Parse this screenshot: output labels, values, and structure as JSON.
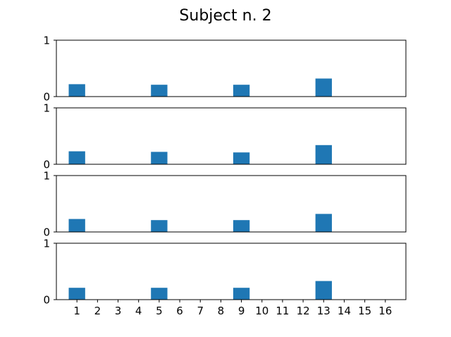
{
  "chart_data": {
    "type": "bar",
    "title": "Subject n. 2",
    "x_tick_labels": [
      "1",
      "2",
      "3",
      "4",
      "5",
      "6",
      "7",
      "8",
      "9",
      "10",
      "11",
      "12",
      "13",
      "14",
      "15",
      "16"
    ],
    "x": [
      1,
      2,
      3,
      4,
      5,
      6,
      7,
      8,
      9,
      10,
      11,
      12,
      13,
      14,
      15,
      16
    ],
    "xlim": [
      0,
      17
    ],
    "ylim": [
      0,
      1
    ],
    "y_tick_labels": [
      "0",
      "1"
    ],
    "bar_color": "#1f77b4",
    "bar_width": 0.8,
    "panels": [
      {
        "name": "panel-1",
        "values": [
          0.22,
          0,
          0,
          0,
          0.21,
          0,
          0,
          0,
          0.21,
          0,
          0,
          0,
          0.32,
          0,
          0,
          0
        ]
      },
      {
        "name": "panel-2",
        "values": [
          0.23,
          0,
          0,
          0,
          0.22,
          0,
          0,
          0,
          0.21,
          0,
          0,
          0,
          0.34,
          0,
          0,
          0
        ]
      },
      {
        "name": "panel-3",
        "values": [
          0.23,
          0,
          0,
          0,
          0.21,
          0,
          0,
          0,
          0.21,
          0,
          0,
          0,
          0.32,
          0,
          0,
          0
        ]
      },
      {
        "name": "panel-4",
        "values": [
          0.21,
          0,
          0,
          0,
          0.21,
          0,
          0,
          0,
          0.21,
          0,
          0,
          0,
          0.33,
          0,
          0,
          0
        ]
      }
    ]
  }
}
